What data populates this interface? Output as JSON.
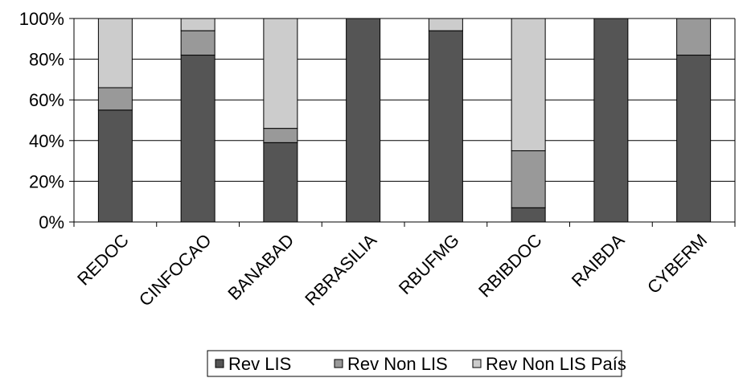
{
  "chart_data": {
    "type": "bar",
    "stacked": true,
    "percent": true,
    "categories": [
      "REDOC",
      "CINFOCAO",
      "BANABAD",
      "RBRASILIA",
      "RBUFMG",
      "RBIBDOC",
      "RAIBDA",
      "CYBERM"
    ],
    "series": [
      {
        "name": "Rev LIS",
        "color": "#555555",
        "values": [
          55,
          82,
          39,
          100,
          94,
          7,
          100,
          82
        ]
      },
      {
        "name": "Rev Non LIS",
        "color": "#999999",
        "values": [
          11,
          12,
          7,
          0,
          0,
          28,
          0,
          18
        ]
      },
      {
        "name": "Rev Non LIS País",
        "color": "#cccccc",
        "values": [
          34,
          6,
          54,
          0,
          6,
          65,
          0,
          0
        ]
      }
    ],
    "yticks": [
      "0%",
      "20%",
      "40%",
      "60%",
      "80%",
      "100%"
    ],
    "ylim": [
      0,
      100
    ],
    "grid": true,
    "legend_position": "bottom"
  }
}
